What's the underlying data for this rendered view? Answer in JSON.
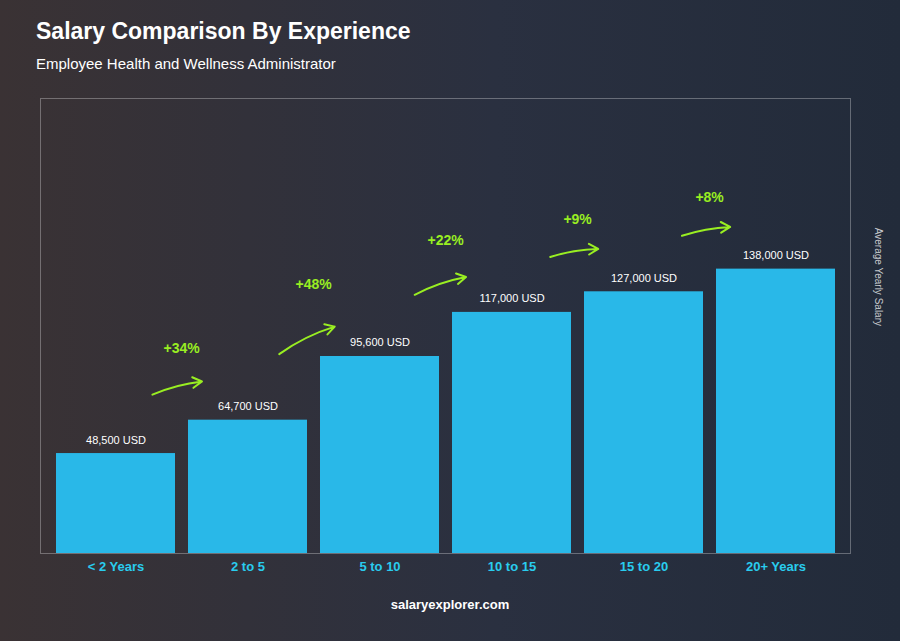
{
  "chart_data": {
    "type": "bar",
    "title": "Salary Comparison By Experience",
    "subtitle": "Employee Health and Wellness Administrator",
    "y_label": "Average Yearly Salary",
    "categories": [
      "< 2 Years",
      "2 to 5",
      "5 to 10",
      "10 to 15",
      "15 to 20",
      "20+ Years"
    ],
    "values": [
      48500,
      64700,
      95600,
      117000,
      127000,
      138000
    ],
    "value_labels": [
      "48,500 USD",
      "64,700 USD",
      "95,600 USD",
      "117,000 USD",
      "127,000 USD",
      "138,000 USD"
    ],
    "annotations": [
      "+34%",
      "+48%",
      "+22%",
      "+9%",
      "+8%"
    ],
    "caption": "salaryexplorer.com",
    "color": "#29b8e8",
    "ylim": [
      0,
      220800
    ],
    "yticks": [],
    "grid": false,
    "tick_labels": "x",
    "data_labels": true
  }
}
